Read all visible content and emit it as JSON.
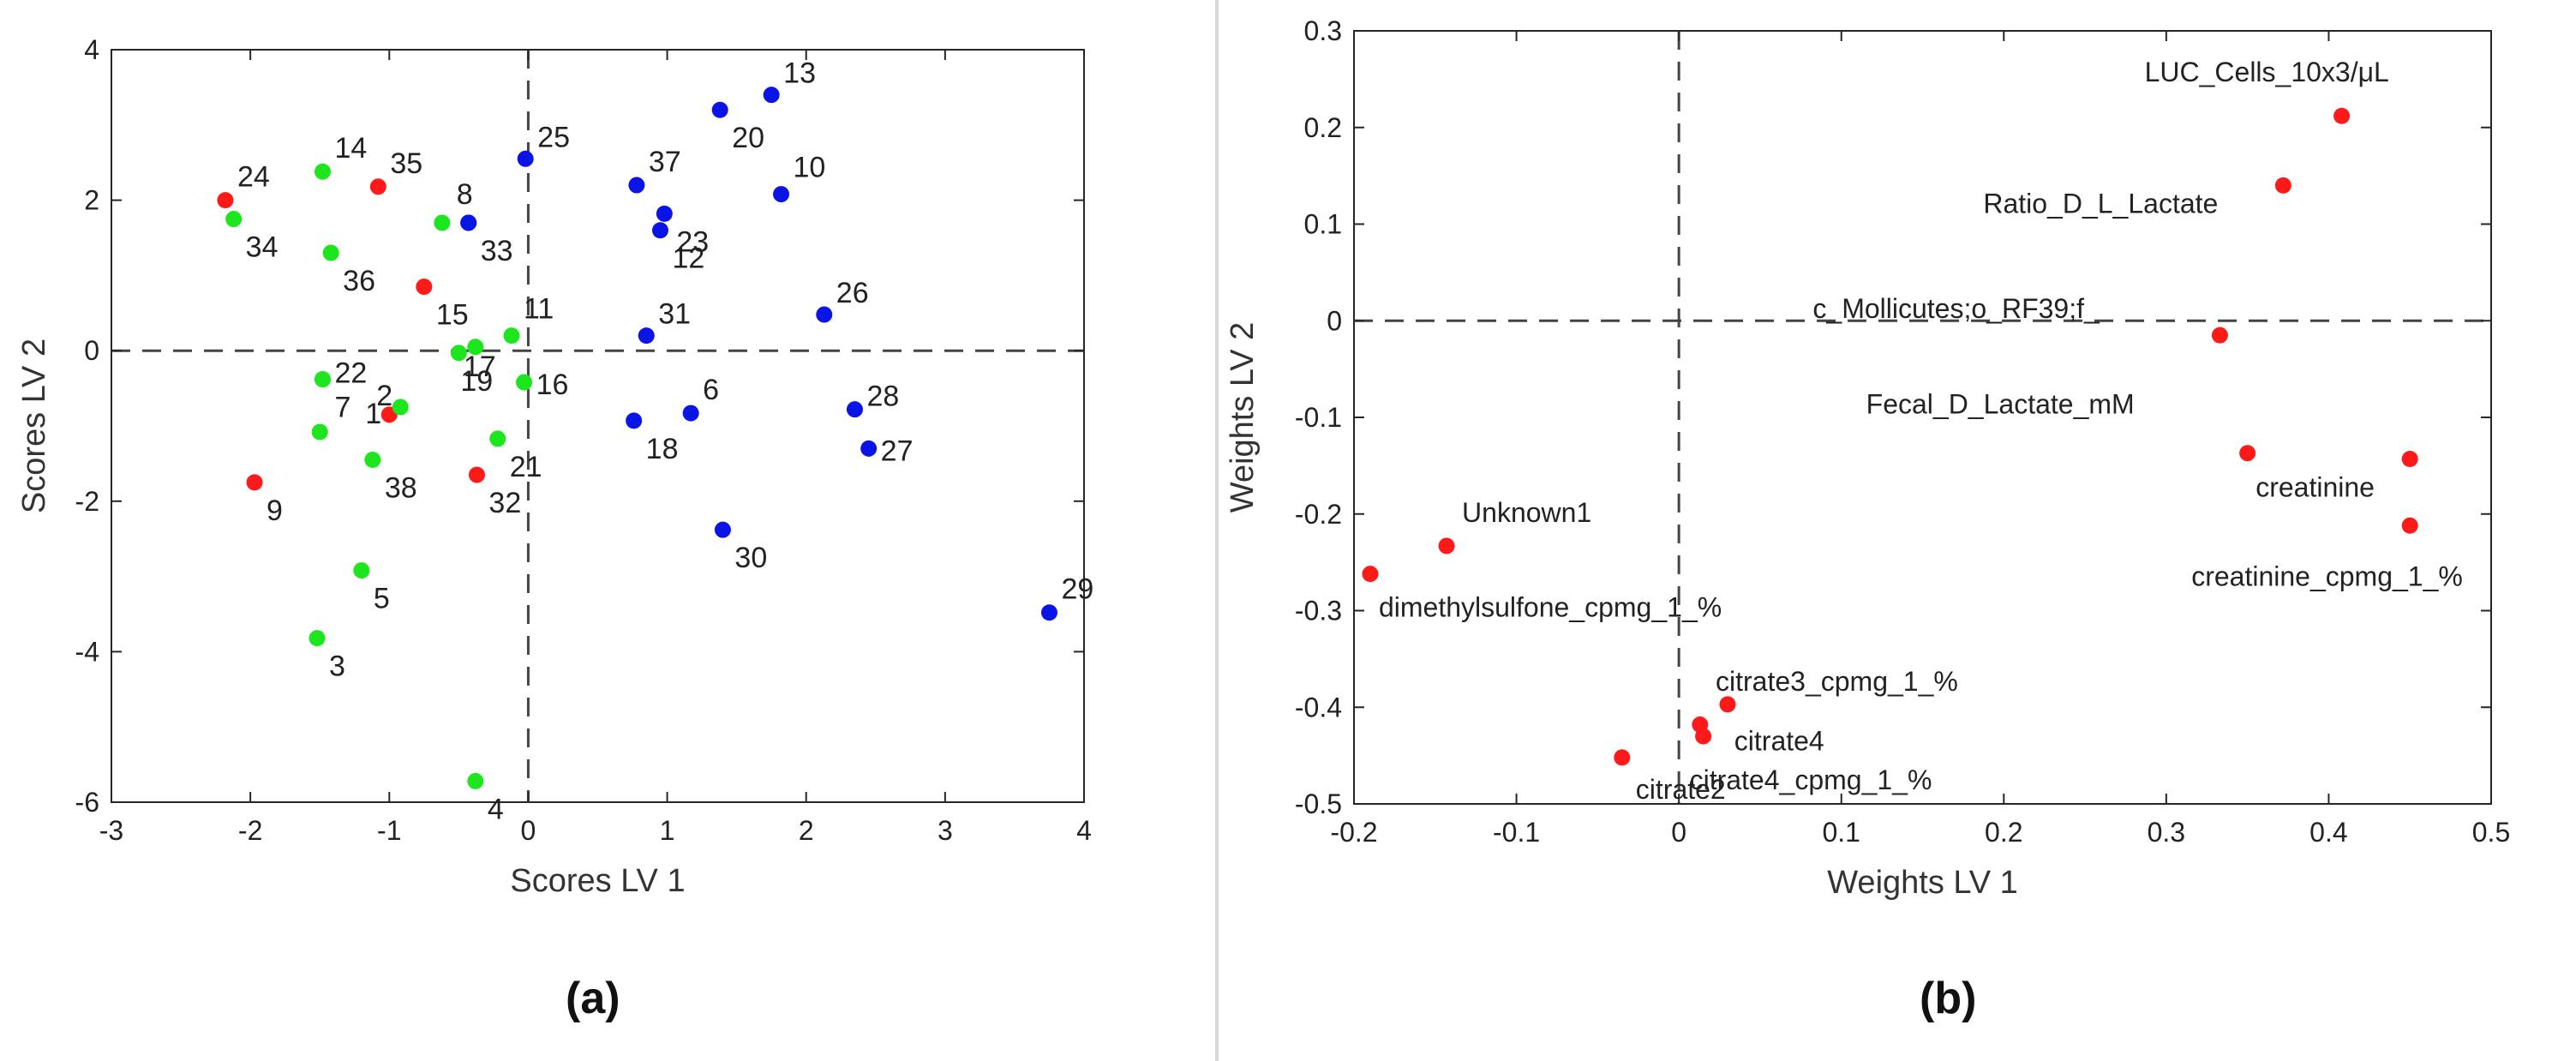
{
  "panels": [
    {
      "label": "(a)"
    },
    {
      "label": "(b)"
    }
  ],
  "chart_data": [
    {
      "type": "scatter",
      "title": "",
      "xlabel": "Scores LV 1",
      "ylabel": "Scores LV 2",
      "xlim": [
        -3,
        4
      ],
      "ylim": [
        -6,
        4
      ],
      "xticks": [
        -3,
        -2,
        -1,
        0,
        1,
        2,
        3,
        4
      ],
      "yticks": [
        -6,
        -4,
        -2,
        0,
        2,
        4
      ],
      "reference_lines": {
        "x": 0,
        "y": 0,
        "style": "dashed"
      },
      "colors": {
        "red": "#ff1a1a",
        "green": "#1ee61e",
        "blue": "#0a14e6"
      },
      "points": [
        {
          "label": "1",
          "x": -1.0,
          "y": -0.85,
          "color": "red"
        },
        {
          "label": "2",
          "x": -0.92,
          "y": -0.75,
          "color": "green"
        },
        {
          "label": "3",
          "x": -1.52,
          "y": -3.82,
          "color": "green"
        },
        {
          "label": "4",
          "x": -0.38,
          "y": -5.72,
          "color": "green"
        },
        {
          "label": "5",
          "x": -1.2,
          "y": -2.92,
          "color": "green"
        },
        {
          "label": "6",
          "x": 1.17,
          "y": -0.83,
          "color": "blue"
        },
        {
          "label": "7",
          "x": -1.48,
          "y": -0.38,
          "color": "green"
        },
        {
          "label": "8",
          "x": -0.43,
          "y": 1.7,
          "color": "blue"
        },
        {
          "label": "9",
          "x": -1.97,
          "y": -1.75,
          "color": "red"
        },
        {
          "label": "10",
          "x": 1.82,
          "y": 2.08,
          "color": "blue"
        },
        {
          "label": "11",
          "x": -0.12,
          "y": 0.2,
          "color": "green"
        },
        {
          "label": "12",
          "x": 0.95,
          "y": 1.6,
          "color": "blue"
        },
        {
          "label": "13",
          "x": 1.75,
          "y": 3.4,
          "color": "blue"
        },
        {
          "label": "14",
          "x": -1.48,
          "y": 2.38,
          "color": "green"
        },
        {
          "label": "15",
          "x": -0.75,
          "y": 0.85,
          "color": "red"
        },
        {
          "label": "16",
          "x": -0.03,
          "y": -0.42,
          "color": "green"
        },
        {
          "label": "17",
          "x": -0.38,
          "y": 0.05,
          "color": "green"
        },
        {
          "label": "18",
          "x": 0.76,
          "y": -0.93,
          "color": "blue"
        },
        {
          "label": "19",
          "x": -0.5,
          "y": -0.03,
          "color": "green"
        },
        {
          "label": "20",
          "x": 1.38,
          "y": 3.2,
          "color": "blue"
        },
        {
          "label": "21",
          "x": -0.22,
          "y": -1.17,
          "color": "green"
        },
        {
          "label": "22",
          "x": -1.48,
          "y": -0.38,
          "color": "green"
        },
        {
          "label": "23",
          "x": 0.98,
          "y": 1.82,
          "color": "blue"
        },
        {
          "label": "24",
          "x": -2.18,
          "y": 2.0,
          "color": "red"
        },
        {
          "label": "25",
          "x": -0.02,
          "y": 2.55,
          "color": "blue"
        },
        {
          "label": "26",
          "x": 2.13,
          "y": 0.48,
          "color": "blue"
        },
        {
          "label": "27",
          "x": 2.45,
          "y": -1.3,
          "color": "blue"
        },
        {
          "label": "28",
          "x": 2.35,
          "y": -0.78,
          "color": "blue"
        },
        {
          "label": "29",
          "x": 3.75,
          "y": -3.48,
          "color": "blue"
        },
        {
          "label": "30",
          "x": 1.4,
          "y": -2.38,
          "color": "blue"
        },
        {
          "label": "31",
          "x": 0.85,
          "y": 0.2,
          "color": "blue"
        },
        {
          "label": "32",
          "x": -0.37,
          "y": -1.65,
          "color": "red"
        },
        {
          "label": "33",
          "x": -0.43,
          "y": 1.7,
          "color": "blue"
        },
        {
          "label": "34",
          "x": -2.12,
          "y": 1.75,
          "color": "green"
        },
        {
          "label": "35",
          "x": -1.08,
          "y": 2.18,
          "color": "red"
        },
        {
          "label": "36",
          "x": -1.42,
          "y": 1.3,
          "color": "green"
        },
        {
          "label": "37",
          "x": 0.78,
          "y": 2.2,
          "color": "blue"
        },
        {
          "label": "38",
          "x": -1.12,
          "y": -1.45,
          "color": "green"
        },
        {
          "label": "",
          "x": -0.62,
          "y": 1.7,
          "color": "green"
        },
        {
          "label": "",
          "x": -1.5,
          "y": -1.08,
          "color": "green"
        }
      ]
    },
    {
      "type": "scatter",
      "title": "",
      "xlabel": "Weights LV 1",
      "ylabel": "Weights LV 2",
      "xlim": [
        -0.2,
        0.5
      ],
      "ylim": [
        -0.5,
        0.3
      ],
      "xticks": [
        -0.2,
        -0.1,
        0,
        0.1,
        0.2,
        0.3,
        0.4,
        0.5
      ],
      "yticks": [
        -0.5,
        -0.4,
        -0.3,
        -0.2,
        -0.1,
        0,
        0.1,
        0.2,
        0.3
      ],
      "reference_lines": {
        "x": 0,
        "y": 0,
        "style": "dashed"
      },
      "colors": {
        "red": "#ff1a1a"
      },
      "points": [
        {
          "label": "LUC_Cells_10x3/μL",
          "x": 0.408,
          "y": 0.212,
          "color": "red"
        },
        {
          "label": "Ratio_D_L_Lactate",
          "x": 0.372,
          "y": 0.14,
          "color": "red"
        },
        {
          "label": "c_Mollicutes;o_RF39;f_",
          "x": 0.333,
          "y": -0.015,
          "color": "red"
        },
        {
          "label": "Fecal_D_Lactate_mM",
          "x": 0.35,
          "y": -0.137,
          "color": "red"
        },
        {
          "label": "creatinine",
          "x": 0.45,
          "y": -0.143,
          "color": "red"
        },
        {
          "label": "creatinine_cpmg_1_%",
          "x": 0.45,
          "y": -0.212,
          "color": "red"
        },
        {
          "label": "Unknown1",
          "x": -0.143,
          "y": -0.233,
          "color": "red"
        },
        {
          "label": "dimethylsulfone_cpmg_1_%",
          "x": -0.19,
          "y": -0.262,
          "color": "red"
        },
        {
          "label": "citrate3_cpmg_1_%",
          "x": 0.03,
          "y": -0.397,
          "color": "red"
        },
        {
          "label": "citrate4",
          "x": 0.013,
          "y": -0.418,
          "color": "red"
        },
        {
          "label": "citrate4_cpmg_1_%",
          "x": 0.015,
          "y": -0.43,
          "color": "red"
        },
        {
          "label": "citrate2",
          "x": -0.035,
          "y": -0.452,
          "color": "red"
        }
      ]
    }
  ]
}
